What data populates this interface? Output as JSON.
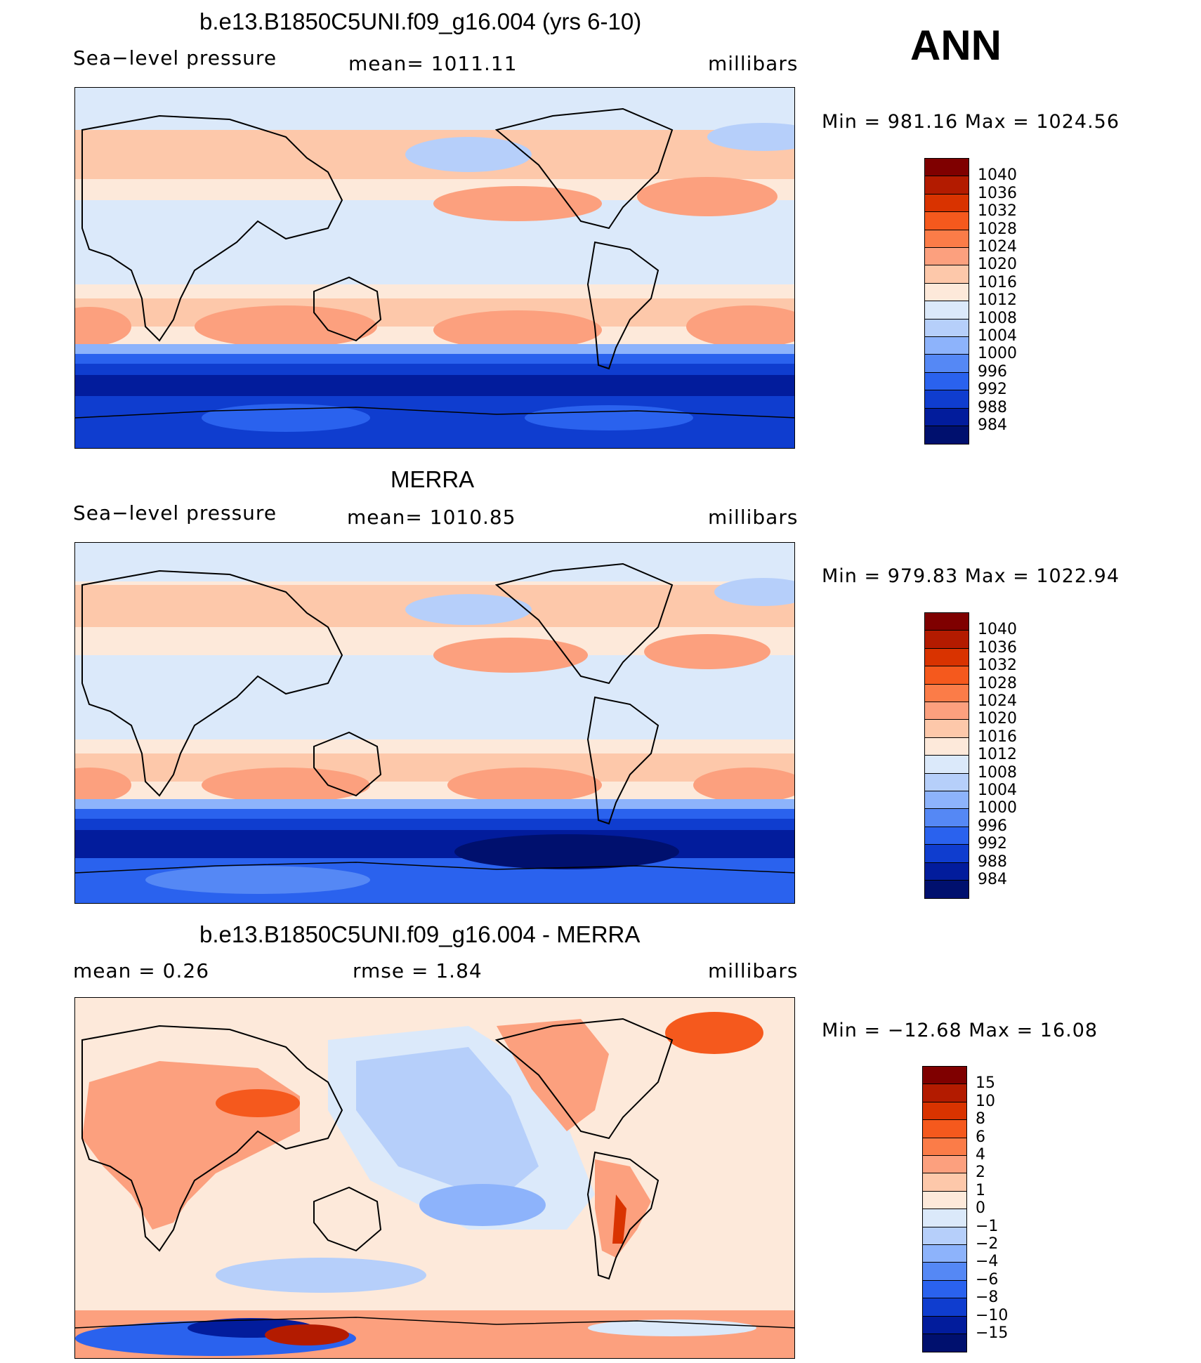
{
  "header": {
    "season": "ANN"
  },
  "panels": [
    {
      "title": "b.e13.B1850C5UNI.f09_g16.004 (yrs 6-10)",
      "left_label": "Sea−level pressure",
      "center_label": "mean=  1011.11",
      "units": "millibars",
      "minmax": "Min  =  981.16  Max  =  1024.56",
      "colorbar": {
        "labels": [
          "1040",
          "1036",
          "1032",
          "1028",
          "1024",
          "1020",
          "1016",
          "1012",
          "1008",
          "1004",
          "1000",
          "996",
          "992",
          "988",
          "984"
        ],
        "colors": [
          "#7f0000",
          "#b31b00",
          "#d93300",
          "#f5591d",
          "#fb7c48",
          "#fca07e",
          "#fdc8aa",
          "#fde9da",
          "#dbe9fa",
          "#b6cffa",
          "#8db3fb",
          "#5588f5",
          "#2a62ee",
          "#0f3dcf",
          "#021c9c",
          "#00106e"
        ]
      }
    },
    {
      "title": "MERRA",
      "left_label": "Sea−level pressure",
      "center_label": "mean=  1010.85",
      "units": "millibars",
      "minmax": "Min  =  979.83  Max  =  1022.94",
      "colorbar": {
        "labels": [
          "1040",
          "1036",
          "1032",
          "1028",
          "1024",
          "1020",
          "1016",
          "1012",
          "1008",
          "1004",
          "1000",
          "996",
          "992",
          "988",
          "984"
        ],
        "colors": [
          "#7f0000",
          "#b31b00",
          "#d93300",
          "#f5591d",
          "#fb7c48",
          "#fca07e",
          "#fdc8aa",
          "#fde9da",
          "#dbe9fa",
          "#b6cffa",
          "#8db3fb",
          "#5588f5",
          "#2a62ee",
          "#0f3dcf",
          "#021c9c",
          "#00106e"
        ]
      }
    },
    {
      "title": "b.e13.B1850C5UNI.f09_g16.004 - MERRA",
      "left_label": "mean  =      0.26",
      "center_label": "rmse  =      1.84",
      "units": "millibars",
      "minmax": "Min  =  −12.68  Max  =     16.08",
      "colorbar": {
        "labels": [
          "15",
          "10",
          "8",
          "6",
          "4",
          "2",
          "1",
          "0",
          "−1",
          "−2",
          "−4",
          "−6",
          "−8",
          "−10",
          "−15"
        ],
        "colors": [
          "#7f0000",
          "#b31b00",
          "#d93300",
          "#f5591d",
          "#fb7c48",
          "#fca07e",
          "#fdc8aa",
          "#fde9da",
          "#dbe9fa",
          "#b6cffa",
          "#8db3fb",
          "#5588f5",
          "#2a62ee",
          "#0f3dcf",
          "#021c9c",
          "#00106e"
        ]
      }
    }
  ]
}
